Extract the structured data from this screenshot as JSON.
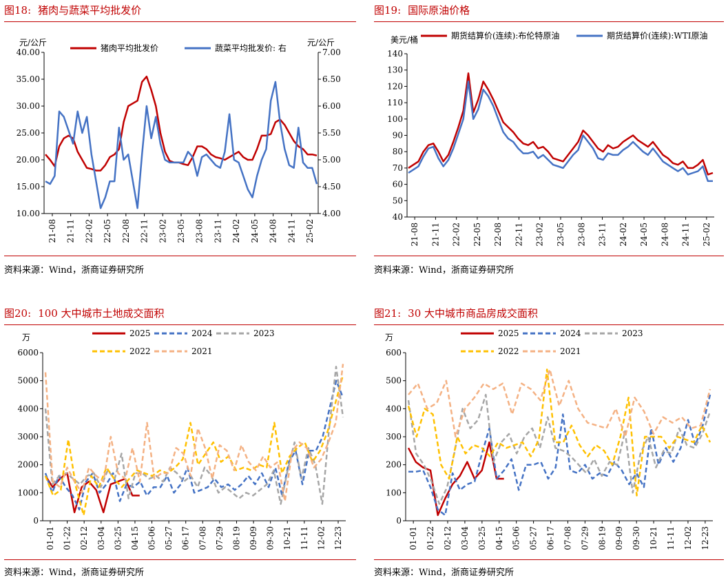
{
  "source_text": "资料来源：Wind，浙商证券研究所",
  "panels": [
    {
      "fig_no": "图18:",
      "fig_title": "猪肉与蔬菜平均批发价",
      "chart_data": {
        "type": "line",
        "left_unit": "元/公斤",
        "right_unit": "元/公斤",
        "left_ylim": [
          10,
          40
        ],
        "left_yticks": [
          "10.00",
          "15.00",
          "20.00",
          "25.00",
          "30.00",
          "35.00",
          "40.00"
        ],
        "right_ylim": [
          4,
          7
        ],
        "right_yticks": [
          "4.00",
          "4.50",
          "5.00",
          "5.50",
          "6.00",
          "6.50",
          "7.00"
        ],
        "x_ticks": [
          "21-08",
          "21-11",
          "22-02",
          "22-05",
          "22-08",
          "22-11",
          "23-02",
          "23-05",
          "23-08",
          "23-11",
          "24-02",
          "24-05",
          "24-08",
          "24-11",
          "25-02"
        ],
        "series": [
          {
            "name": "猪肉平均批发价",
            "axis": "left",
            "color": "#c00000",
            "values": [
              21.0,
              20.0,
              18.8,
              22.5,
              24.0,
              24.5,
              24.0,
              21.5,
              20.0,
              18.5,
              18.3,
              18.0,
              18.0,
              19.0,
              20.5,
              21.0,
              22.0,
              27.0,
              30.0,
              30.5,
              31.0,
              34.5,
              35.5,
              33.0,
              30.0,
              25.0,
              21.5,
              19.8,
              19.5,
              19.5,
              19.2,
              19.0,
              20.5,
              22.5,
              22.5,
              22.0,
              21.0,
              20.5,
              20.3,
              20.0,
              20.5,
              21.0,
              21.5,
              20.5,
              20.0,
              20.0,
              22.0,
              24.5,
              24.5,
              24.8,
              27.0,
              27.5,
              26.5,
              25.0,
              23.5,
              22.5,
              22.0,
              21.0,
              21.0,
              20.8
            ]
          },
          {
            "name": "蔬菜平均批发价: 右",
            "axis": "right",
            "color": "#4472c4",
            "values": [
              4.6,
              4.55,
              4.7,
              5.9,
              5.8,
              5.55,
              5.3,
              5.9,
              5.5,
              5.8,
              5.1,
              4.6,
              4.1,
              4.3,
              4.6,
              4.6,
              5.6,
              5.0,
              5.1,
              4.6,
              4.1,
              5.1,
              6.0,
              5.4,
              5.8,
              5.3,
              5.0,
              4.95,
              4.95,
              4.95,
              4.95,
              5.15,
              5.05,
              4.7,
              5.05,
              5.1,
              5.0,
              4.9,
              4.85,
              5.15,
              5.85,
              5.0,
              4.95,
              4.7,
              4.45,
              4.3,
              4.7,
              5.0,
              5.2,
              6.1,
              6.45,
              5.7,
              5.2,
              4.9,
              4.85,
              5.6,
              4.95,
              4.85,
              4.85,
              4.55
            ]
          }
        ]
      }
    },
    {
      "fig_no": "图19:",
      "fig_title": "国际原油价格",
      "chart_data": {
        "type": "line",
        "left_unit": "美元/桶",
        "ylim": [
          40,
          140
        ],
        "yticks": [
          "40",
          "50",
          "60",
          "70",
          "80",
          "90",
          "100",
          "110",
          "120",
          "130",
          "140"
        ],
        "x_ticks": [
          "21-08",
          "21-11",
          "22-02",
          "22-05",
          "22-08",
          "22-11",
          "23-02",
          "23-05",
          "23-08",
          "23-11",
          "24-02",
          "24-05",
          "24-08",
          "24-11",
          "25-02"
        ],
        "series": [
          {
            "name": "期货结算价(连续):布伦特原油",
            "color": "#c00000",
            "values": [
              70,
              72,
              74,
              80,
              84,
              85,
              80,
              74,
              78,
              86,
              95,
              105,
              128,
              104,
              112,
              123,
              118,
              112,
              105,
              98,
              95,
              92,
              88,
              85,
              84,
              86,
              82,
              83,
              80,
              76,
              75,
              74,
              78,
              82,
              86,
              93,
              90,
              86,
              82,
              80,
              84,
              82,
              83,
              86,
              88,
              90,
              87,
              85,
              83,
              86,
              82,
              78,
              76,
              73,
              72,
              74,
              70,
              70,
              72,
              75,
              66,
              67
            ]
          },
          {
            "name": "期货结算价(连续):WTI原油",
            "color": "#4472c4",
            "values": [
              67,
              69,
              71,
              77,
              82,
              83,
              76,
              71,
              75,
              82,
              91,
              100,
              123,
              100,
              106,
              118,
              114,
              108,
              100,
              92,
              88,
              86,
              82,
              79,
              79,
              80,
              76,
              78,
              75,
              72,
              71,
              70,
              74,
              78,
              81,
              90,
              86,
              82,
              76,
              75,
              79,
              78,
              78,
              81,
              83,
              86,
              83,
              80,
              78,
              82,
              78,
              74,
              72,
              70,
              68,
              70,
              66,
              67,
              68,
              71,
              62,
              62
            ]
          }
        ]
      }
    },
    {
      "fig_no": "图20:",
      "fig_title": "100 大中城市土地成交面积",
      "chart_data": {
        "type": "line",
        "left_unit": "万",
        "ylim": [
          0,
          6000
        ],
        "yticks": [
          "0",
          "1000",
          "2000",
          "3000",
          "4000",
          "5000",
          "6000"
        ],
        "x_ticks": [
          "01-01",
          "01-22",
          "02-12",
          "03-04",
          "03-25",
          "04-15",
          "05-06",
          "05-27",
          "06-17",
          "07-08",
          "07-29",
          "08-19",
          "09-09",
          "09-30",
          "10-21",
          "11-11",
          "12-02",
          "12-23"
        ],
        "series": [
          {
            "name": "2025",
            "color": "#c00000",
            "dash": "",
            "values": [
              1600,
              1200,
              1500,
              1700,
              300,
              1200,
              1400,
              1100,
              300,
              1300,
              1400,
              1500,
              900,
              900
            ]
          },
          {
            "name": "2024",
            "color": "#4472c4",
            "dash": "7,4",
            "values": [
              1700,
              1000,
              1600,
              1200,
              900,
              400,
              1400,
              1700,
              1000,
              1300,
              1700,
              700,
              1300,
              1200,
              1400,
              900,
              1200,
              1200,
              1600,
              1000,
              1300,
              1900,
              1000,
              1100,
              1200,
              1500,
              1200,
              1300,
              1100,
              1300,
              1600,
              1300,
              1700,
              1200,
              1900,
              900,
              2100,
              2500,
              1300,
              2500,
              2500,
              3000,
              4000,
              5000,
              4400
            ]
          },
          {
            "name": "2023",
            "color": "#a6a6a6",
            "dash": "7,4",
            "values": [
              4000,
              1300,
              1600,
              1700,
              1500,
              1300,
              1600,
              1700,
              1200,
              1800,
              1500,
              2400,
              800,
              1700,
              1700,
              1500,
              1600,
              1400,
              1900,
              1700,
              1400,
              1600,
              1200,
              1900,
              1600,
              1000,
              1200,
              1000,
              800,
              1000,
              900,
              1100,
              1300,
              1800,
              600,
              1800,
              2800,
              1500,
              2600,
              2000,
              600,
              3300,
              5500,
              3700
            ]
          },
          {
            "name": "2022",
            "color": "#ffc000",
            "dash": "7,4",
            "values": [
              1600,
              900,
              1100,
              2900,
              1200,
              200,
              1600,
              1200,
              1900,
              1500,
              1200,
              1500,
              1800,
              1700,
              1600,
              1800,
              1700,
              1900,
              2200,
              3500,
              2000,
              2400,
              2800,
              2100,
              2300,
              1800,
              1900,
              1800,
              2000,
              1900,
              3500,
              1700,
              2300,
              2600,
              2800,
              2100,
              2500,
              3200,
              4200,
              5200
            ]
          },
          {
            "name": "2021",
            "color": "#f4b183",
            "dash": "7,4",
            "values": [
              5300,
              1400,
              1200,
              1900,
              1400,
              1000,
              1900,
              1600,
              1400,
              3000,
              1700,
              1500,
              2600,
              1400,
              3500,
              1500,
              1700,
              1700,
              2600,
              2400,
              1600,
              3300,
              2600,
              1500,
              2700,
              2500,
              1800,
              2700,
              2100,
              1800,
              2300,
              1900,
              2100,
              700,
              2500,
              2800,
              2600,
              1900,
              2200,
              2800,
              3500,
              5600
            ]
          }
        ]
      }
    },
    {
      "fig_no": "图21:",
      "fig_title": "30 大中城市商品房成交面积",
      "chart_data": {
        "type": "line",
        "left_unit": "万",
        "ylim": [
          0,
          600
        ],
        "yticks": [
          "0",
          "100",
          "200",
          "300",
          "400",
          "500",
          "600"
        ],
        "x_ticks": [
          "01-01",
          "01-22",
          "02-12",
          "03-04",
          "03-25",
          "04-15",
          "05-06",
          "05-27",
          "06-17",
          "07-08",
          "07-29",
          "08-19",
          "09-09",
          "09-30",
          "10-21",
          "11-11",
          "12-02",
          "12-23"
        ],
        "series": [
          {
            "name": "2025",
            "color": "#c00000",
            "dash": "",
            "values": [
              260,
              210,
              190,
              180,
              20,
              80,
              130,
              160,
              210,
              150,
              180,
              280,
              150,
              150
            ]
          },
          {
            "name": "2024",
            "color": "#4472c4",
            "dash": "7,4",
            "values": [
              175,
              175,
              180,
              120,
              40,
              20,
              170,
              110,
              130,
              140,
              240,
              330,
              150,
              180,
              220,
              110,
              200,
              200,
              210,
              150,
              190,
              380,
              180,
              170,
              200,
              150,
              170,
              160,
              210,
              180,
              130,
              170,
              120,
              330,
              200,
              260,
              210,
              260,
              360,
              270,
              340,
              450
            ]
          },
          {
            "name": "2023",
            "color": "#a6a6a6",
            "dash": "7,4",
            "values": [
              430,
              240,
              200,
              140,
              60,
              120,
              250,
              400,
              330,
              360,
              450,
              210,
              280,
              310,
              240,
              300,
              330,
              260,
              370,
              260,
              250,
              230,
              200,
              170,
              220,
              160,
              210,
              200,
              320,
              100,
              240,
              300,
              190,
              250,
              240,
              330,
              270,
              260,
              310,
              390
            ]
          },
          {
            "name": "2022",
            "color": "#ffc000",
            "dash": "7,4",
            "values": [
              410,
              300,
              400,
              380,
              200,
              150,
              300,
              240,
              270,
              260,
              230,
              280,
              260,
              270,
              280,
              230,
              290,
              540,
              280,
              280,
              340,
              270,
              230,
              270,
              250,
              200,
              300,
              440,
              90,
              300,
              300,
              300,
              260,
              300,
              290,
              280,
              340,
              280
            ]
          },
          {
            "name": "2021",
            "color": "#f4b183",
            "dash": "7,4",
            "values": [
              450,
              490,
              400,
              420,
              500,
              300,
              400,
              440,
              490,
              470,
              490,
              380,
              490,
              470,
              430,
              540,
              410,
              500,
              400,
              350,
              340,
              330,
              400,
              300,
              440,
              390,
              310,
              370,
              350,
              370,
              330,
              340,
              470
            ]
          }
        ]
      }
    }
  ]
}
